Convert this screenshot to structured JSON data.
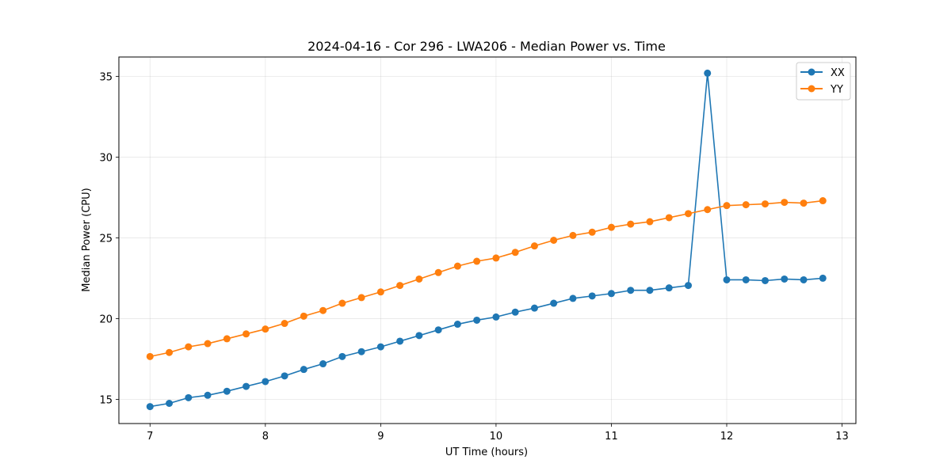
{
  "chart_data": {
    "type": "line",
    "title": "2024-04-16 - Cor 296 - LWA206 - Median Power vs. Time",
    "xlabel": "UT Time (hours)",
    "ylabel": "Median Power (CPU)",
    "xlim": [
      6.73,
      13.12
    ],
    "ylim": [
      13.5,
      36.2
    ],
    "xticks": [
      7,
      8,
      9,
      10,
      11,
      12,
      13
    ],
    "yticks": [
      15,
      20,
      25,
      30,
      35
    ],
    "grid": true,
    "legend_position": "top-right",
    "series": [
      {
        "name": "XX",
        "color": "#1f77b4",
        "x": [
          7.0,
          7.1667,
          7.3333,
          7.5,
          7.6667,
          7.8333,
          8.0,
          8.1667,
          8.3333,
          8.5,
          8.6667,
          8.8333,
          9.0,
          9.1667,
          9.3333,
          9.5,
          9.6667,
          9.8333,
          10.0,
          10.1667,
          10.3333,
          10.5,
          10.6667,
          10.8333,
          11.0,
          11.1667,
          11.3333,
          11.5,
          11.6667,
          11.8333,
          12.0,
          12.1667,
          12.3333,
          12.5,
          12.6667,
          12.8333
        ],
        "y": [
          14.55,
          14.75,
          15.1,
          15.25,
          15.5,
          15.8,
          16.1,
          16.45,
          16.85,
          17.2,
          17.65,
          17.95,
          18.25,
          18.6,
          18.95,
          19.3,
          19.65,
          19.9,
          20.1,
          20.4,
          20.65,
          20.95,
          21.25,
          21.4,
          21.55,
          21.75,
          21.75,
          21.9,
          22.05,
          35.2,
          22.4,
          22.4,
          22.35,
          22.45,
          22.4,
          22.5
        ]
      },
      {
        "name": "YY",
        "color": "#ff7f0e",
        "x": [
          7.0,
          7.1667,
          7.3333,
          7.5,
          7.6667,
          7.8333,
          8.0,
          8.1667,
          8.3333,
          8.5,
          8.6667,
          8.8333,
          9.0,
          9.1667,
          9.3333,
          9.5,
          9.6667,
          9.8333,
          10.0,
          10.1667,
          10.3333,
          10.5,
          10.6667,
          10.8333,
          11.0,
          11.1667,
          11.3333,
          11.5,
          11.6667,
          11.8333,
          12.0,
          12.1667,
          12.3333,
          12.5,
          12.6667,
          12.8333
        ],
        "y": [
          17.65,
          17.9,
          18.25,
          18.45,
          18.75,
          19.05,
          19.35,
          19.7,
          20.15,
          20.5,
          20.95,
          21.3,
          21.65,
          22.05,
          22.45,
          22.85,
          23.25,
          23.55,
          23.75,
          24.1,
          24.5,
          24.85,
          25.15,
          25.35,
          25.65,
          25.85,
          26.0,
          26.25,
          26.5,
          26.75,
          27.0,
          27.05,
          27.1,
          27.2,
          27.15,
          27.3
        ]
      }
    ]
  }
}
